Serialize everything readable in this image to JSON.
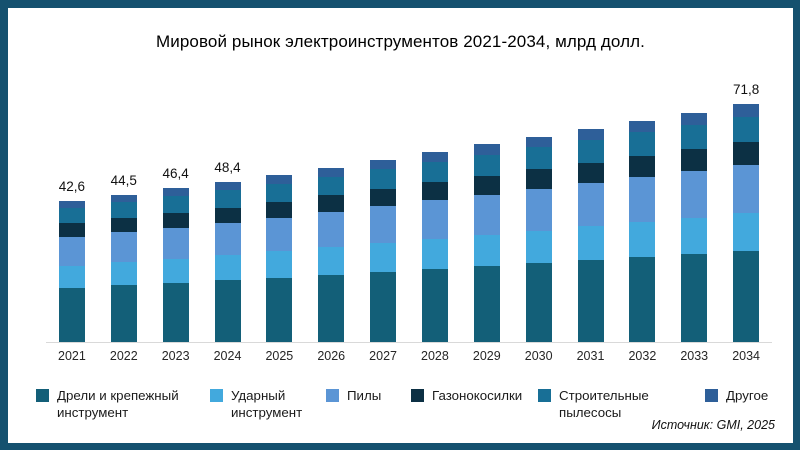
{
  "frame": {
    "border_color": "#15516f",
    "card_background": "#ffffff"
  },
  "title": "Мировой рынок электроинструментов 2021-2034, млрд долл.",
  "source_note": "Источник: GMI, 2025",
  "chart_data": {
    "type": "bar",
    "stacked": true,
    "title": "Мировой рынок электроинструментов 2021-2034, млрд долл.",
    "unit": "млрд долл.",
    "categories": [
      "2021",
      "2022",
      "2023",
      "2024",
      "2025",
      "2026",
      "2027",
      "2028",
      "2029",
      "2030",
      "2031",
      "2032",
      "2033",
      "2034"
    ],
    "totals": [
      42.6,
      44.5,
      46.4,
      48.4,
      50.5,
      52.7,
      55.0,
      57.3,
      59.7,
      62.0,
      64.4,
      66.8,
      69.3,
      71.8
    ],
    "total_labels": [
      "42,6",
      "44,5",
      "46,4",
      "48,4",
      null,
      null,
      null,
      null,
      null,
      null,
      null,
      null,
      null,
      "71,8"
    ],
    "series": [
      {
        "name": "Дрели и крепежный инструмент",
        "color": "#135f78",
        "values": [
          16.4,
          17.1,
          17.9,
          18.6,
          19.4,
          20.3,
          21.2,
          22.1,
          23.0,
          23.9,
          24.8,
          25.7,
          26.7,
          27.6
        ]
      },
      {
        "name": "Ударный инструмент",
        "color": "#42a9dd",
        "values": [
          6.7,
          7.0,
          7.3,
          7.6,
          8.0,
          8.3,
          8.7,
          9.1,
          9.4,
          9.8,
          10.2,
          10.6,
          10.9,
          11.3
        ]
      },
      {
        "name": "Пилы",
        "color": "#5b95d5",
        "values": [
          8.6,
          9.0,
          9.4,
          9.8,
          10.2,
          10.6,
          11.1,
          11.6,
          12.1,
          12.5,
          13.0,
          13.5,
          14.0,
          14.5
        ]
      },
      {
        "name": "Газонокосилки",
        "color": "#0c3044",
        "values": [
          4.1,
          4.3,
          4.5,
          4.6,
          4.8,
          5.1,
          5.3,
          5.5,
          5.7,
          6.0,
          6.2,
          6.4,
          6.7,
          6.9
        ]
      },
      {
        "name": "Строительные пылесосы",
        "color": "#186f96",
        "values": [
          4.6,
          4.8,
          5.0,
          5.2,
          5.4,
          5.6,
          5.9,
          6.1,
          6.4,
          6.6,
          6.9,
          7.1,
          7.4,
          7.7
        ]
      },
      {
        "name": "Другое",
        "color": "#2e5f99",
        "values": [
          2.2,
          2.3,
          2.3,
          2.6,
          2.7,
          2.8,
          2.8,
          2.9,
          3.1,
          3.2,
          3.3,
          3.5,
          3.6,
          3.8
        ]
      }
    ],
    "ylim": [
      0,
      75
    ],
    "grid": false,
    "axis_line_color": "#d9d9d9",
    "legend_position": "bottom"
  },
  "legend": {
    "items": [
      "Дрели и крепежный инструмент",
      "Ударный инструмент",
      "Пилы",
      "Газонокосилки",
      "Строительные пылесосы",
      "Другое"
    ]
  }
}
